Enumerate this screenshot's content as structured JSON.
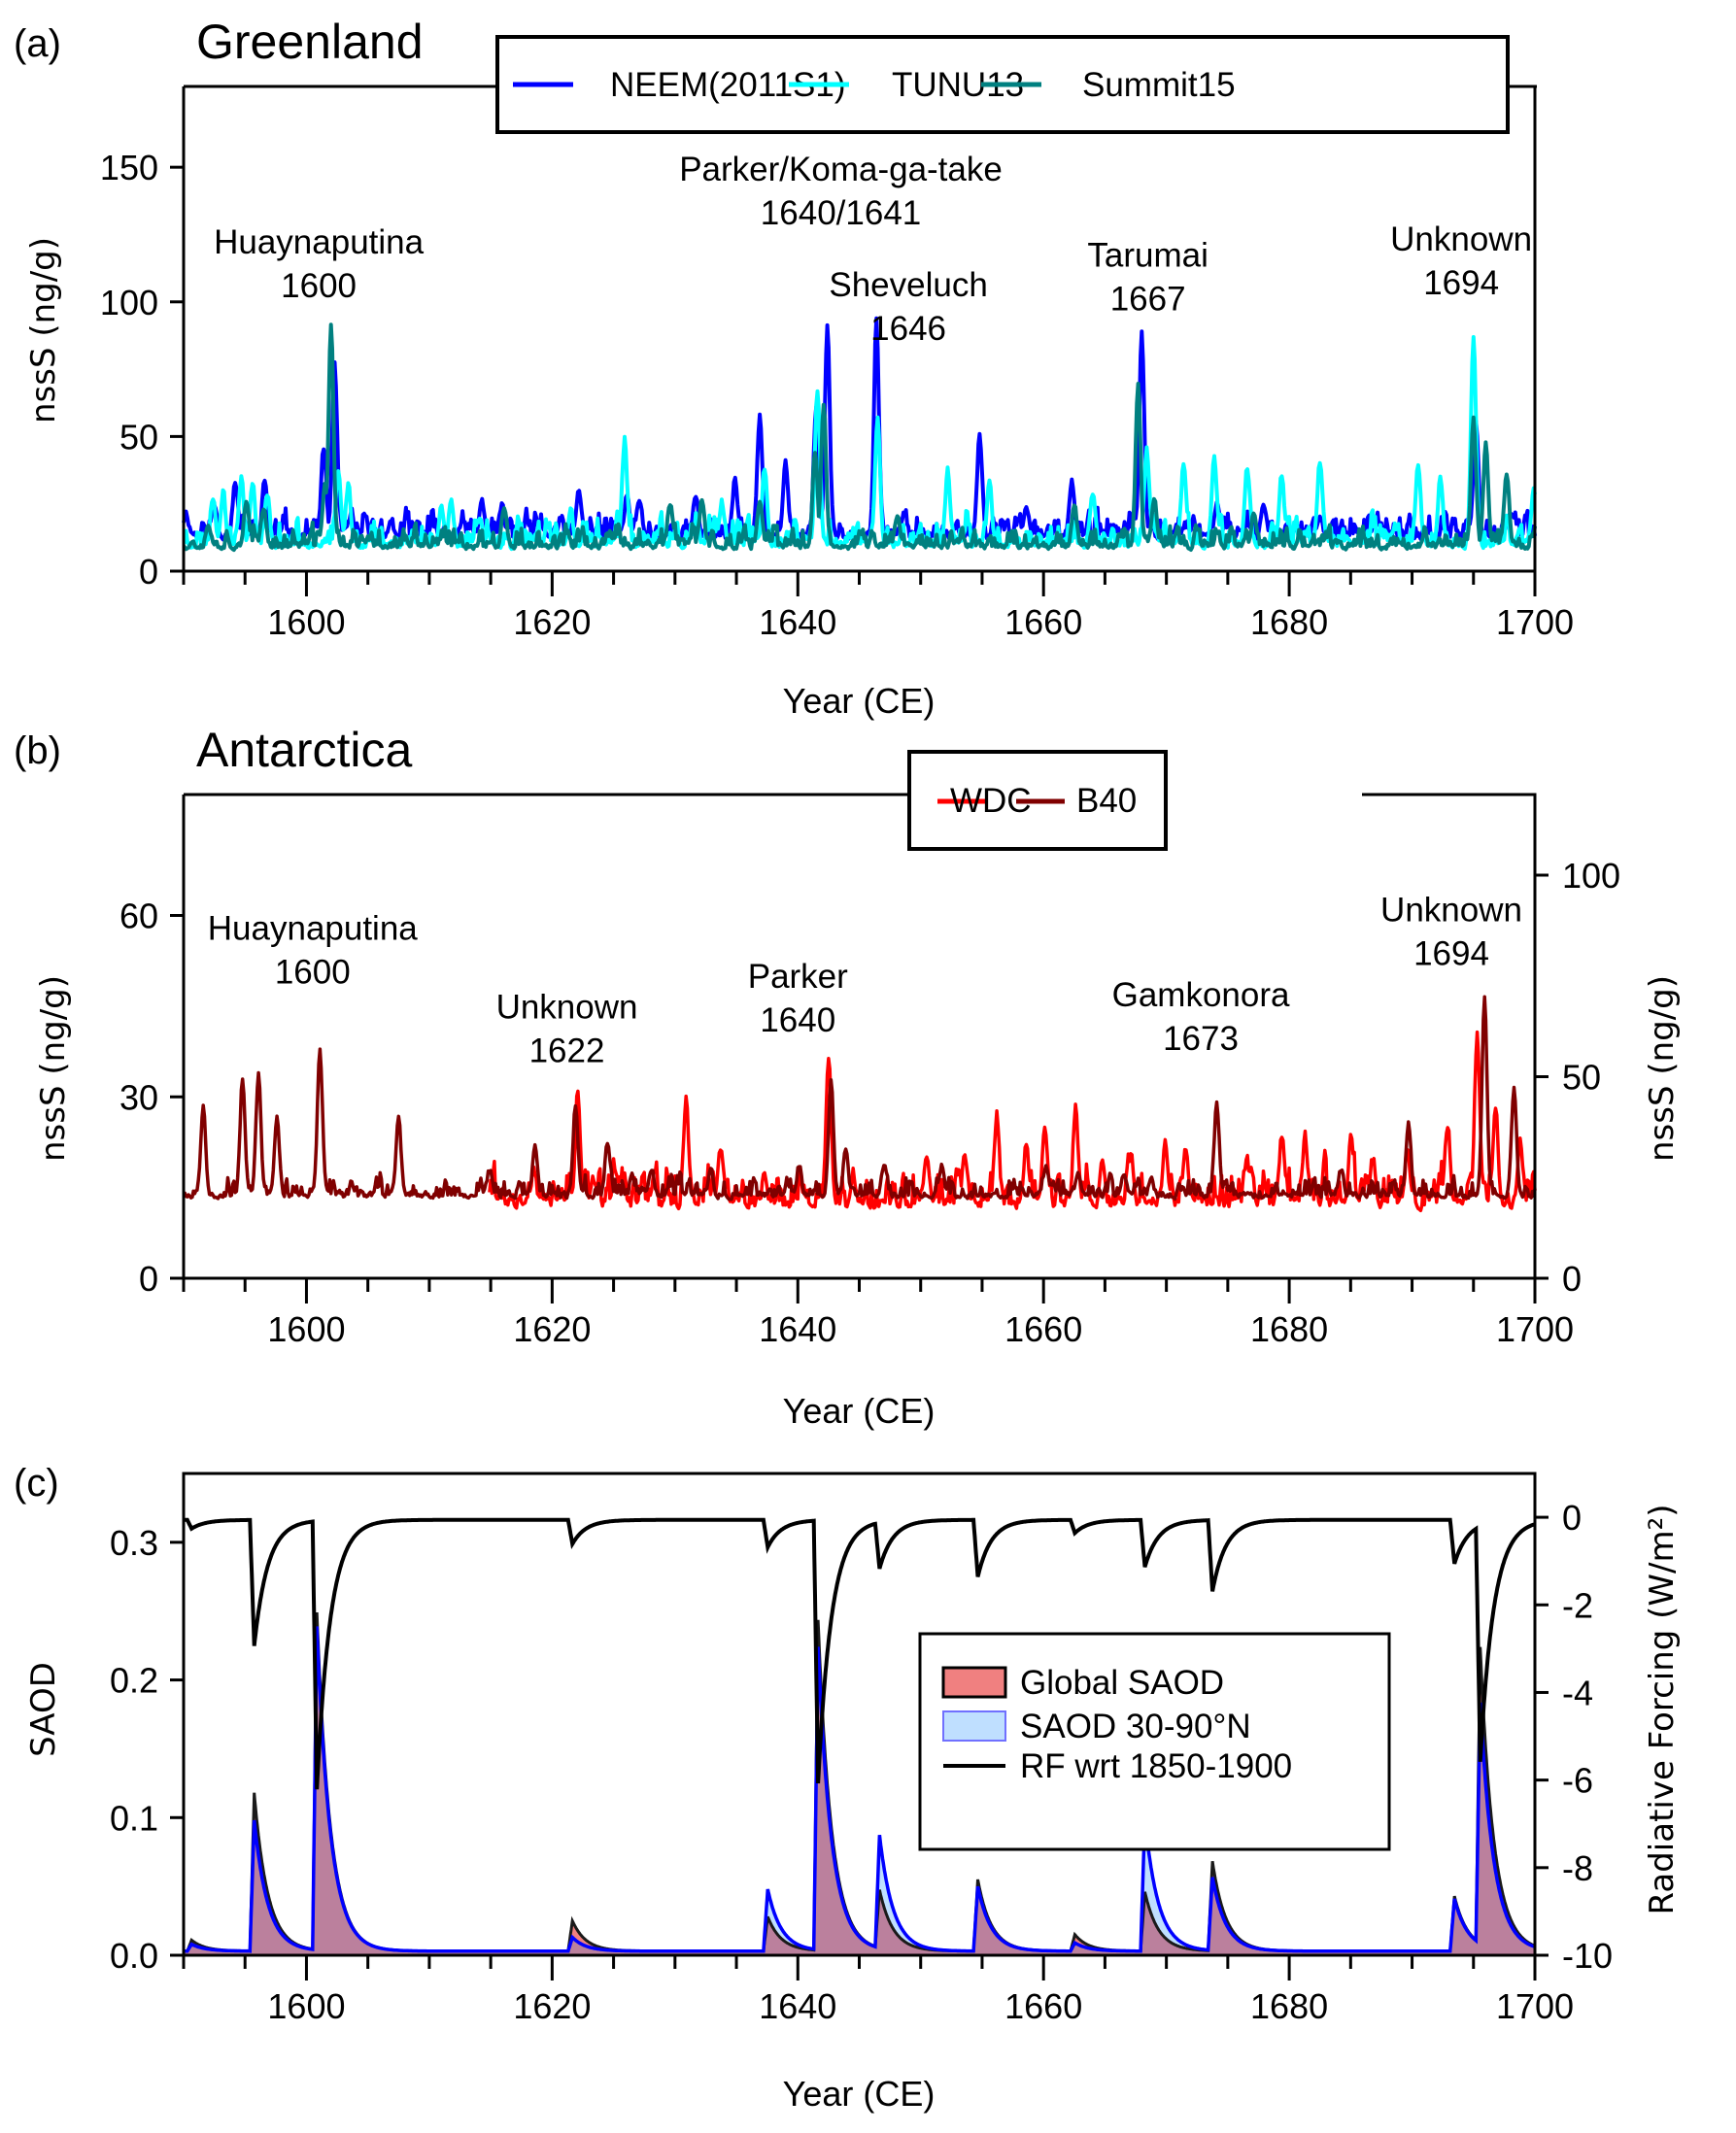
{
  "chart_data": [
    {
      "panel": "(a)",
      "type": "line",
      "title": "Greenland",
      "xlabel": "Year (CE)",
      "ylabel": "nssS (ng/g)",
      "xlim": [
        1590,
        1700
      ],
      "ylim": [
        0,
        180
      ],
      "xticks": [
        1600,
        1620,
        1640,
        1660,
        1680,
        1700
      ],
      "xtick_labels": [
        "1600",
        "1620",
        "1640",
        "1660",
        "1680",
        "1700"
      ],
      "minor_xtick_step": 5,
      "yticks": [
        0,
        50,
        100,
        150
      ],
      "ytick_labels": [
        "0",
        "50",
        "100",
        "150"
      ],
      "legend": {
        "placement": "top-center",
        "entries": [
          "NEEM(2011S1)",
          "TUNU13",
          "Summit15"
        ]
      },
      "series": [
        {
          "name": "NEEM(2011S1)",
          "color": "#0000ff",
          "baseline": 14,
          "noise": 7,
          "seed": 11,
          "peaks": [
            [
              1590.2,
              22
            ],
            [
              1592.5,
              25
            ],
            [
              1594.2,
              33
            ],
            [
              1596.6,
              33
            ],
            [
              1601.4,
              46
            ],
            [
              1602.3,
              78
            ],
            [
              1606.8,
              18
            ],
            [
              1614.3,
              26
            ],
            [
              1615.9,
              24
            ],
            [
              1622.2,
              30
            ],
            [
              1626.1,
              28
            ],
            [
              1627.1,
              27
            ],
            [
              1631.7,
              28
            ],
            [
              1634.9,
              35
            ],
            [
              1636.9,
              57
            ],
            [
              1639.0,
              39
            ],
            [
              1641.5,
              62
            ],
            [
              1642.4,
              90
            ],
            [
              1646.4,
              93
            ],
            [
              1654.8,
              52
            ],
            [
              1658.6,
              26
            ],
            [
              1662.3,
              35
            ],
            [
              1668.0,
              88
            ],
            [
              1674.1,
              25
            ],
            [
              1677.9,
              26
            ],
            [
              1682.5,
              22
            ],
            [
              1695.2,
              55
            ],
            [
              1697.9,
              21
            ]
          ]
        },
        {
          "name": "TUNU13",
          "color": "#00ffff",
          "baseline": 11,
          "noise": 8,
          "seed": 23,
          "peaks": [
            [
              1592.4,
              28
            ],
            [
              1593.2,
              30
            ],
            [
              1594.7,
              36
            ],
            [
              1595.6,
              33
            ],
            [
              1596.8,
              28
            ],
            [
              1602.6,
              36
            ],
            [
              1603.4,
              32
            ],
            [
              1611.0,
              24
            ],
            [
              1611.8,
              26
            ],
            [
              1621.5,
              22
            ],
            [
              1625.9,
              49
            ],
            [
              1633.8,
              26
            ],
            [
              1637.3,
              38
            ],
            [
              1641.6,
              68
            ],
            [
              1646.5,
              57
            ],
            [
              1652.2,
              37
            ],
            [
              1655.6,
              34
            ],
            [
              1664.0,
              30
            ],
            [
              1668.4,
              44
            ],
            [
              1671.4,
              40
            ],
            [
              1673.9,
              41
            ],
            [
              1676.6,
              38
            ],
            [
              1679.4,
              35
            ],
            [
              1682.5,
              40
            ],
            [
              1690.5,
              41
            ],
            [
              1692.3,
              35
            ],
            [
              1695.0,
              87
            ],
            [
              1699.9,
              30
            ]
          ]
        },
        {
          "name": "Summit15",
          "color": "#008080",
          "baseline": 10,
          "noise": 6,
          "seed": 37,
          "peaks": [
            [
              1592.0,
              18
            ],
            [
              1595.1,
              25
            ],
            [
              1596.5,
              24
            ],
            [
              1601.5,
              33
            ],
            [
              1602.0,
              91
            ],
            [
              1616.1,
              25
            ],
            [
              1629.6,
              25
            ],
            [
              1632.2,
              27
            ],
            [
              1636.9,
              25
            ],
            [
              1641.4,
              45
            ],
            [
              1642.1,
              62
            ],
            [
              1648.1,
              20
            ],
            [
              1662.5,
              25
            ],
            [
              1667.7,
              68
            ],
            [
              1669.0,
              27
            ],
            [
              1677.1,
              22
            ],
            [
              1695.0,
              57
            ],
            [
              1696.0,
              47
            ],
            [
              1697.7,
              36
            ]
          ]
        }
      ],
      "annotations": [
        {
          "lines": [
            "Huaynaputina",
            "1600"
          ],
          "x": 1601.0,
          "y": 118
        },
        {
          "lines": [
            "Parker/Koma-ga-take",
            "1640/1641"
          ],
          "x": 1643.5,
          "y": 145
        },
        {
          "lines": [
            "Sheveluch",
            "1646"
          ],
          "x": 1649.0,
          "y": 102
        },
        {
          "lines": [
            "Tarumai",
            "1667"
          ],
          "x": 1668.5,
          "y": 113
        },
        {
          "lines": [
            "Unknown",
            "1694"
          ],
          "x": 1694.0,
          "y": 119
        }
      ]
    },
    {
      "panel": "(b)",
      "type": "line",
      "title": "Antarctica",
      "xlabel": "Year (CE)",
      "ylabel": "nssS (ng/g)",
      "ylabel_right": "nssS (ng/g)",
      "xlim": [
        1590,
        1700
      ],
      "ylim": [
        0,
        80
      ],
      "ylim_right": [
        0,
        120
      ],
      "xticks": [
        1600,
        1620,
        1640,
        1660,
        1680,
        1700
      ],
      "xtick_labels": [
        "1600",
        "1620",
        "1640",
        "1660",
        "1680",
        "1700"
      ],
      "minor_xtick_step": 5,
      "yticks": [
        0,
        30,
        60
      ],
      "ytick_labels": [
        "0",
        "30",
        "60"
      ],
      "yticks_right": [
        0,
        50,
        100
      ],
      "ytick_labels_right": [
        "0",
        "50",
        "100"
      ],
      "legend": {
        "placement": "top-right",
        "entries": [
          "WDC",
          "B40"
        ]
      },
      "series": [
        {
          "name": "WDC",
          "color": "#ff0000",
          "axis": "left",
          "baseline": 13,
          "noise": 5,
          "seed": 51,
          "gap": [
            1614.6,
            1614.8
          ],
          "peaks": [
            [
              1594.5,
              30
            ],
            [
              1595.5,
              31
            ],
            [
              1596.3,
              35
            ],
            [
              1598.1,
              24
            ],
            [
              1600.8,
              41
            ],
            [
              1601.4,
              35
            ],
            [
              1604.7,
              24
            ],
            [
              1606.3,
              17
            ],
            [
              1608.6,
              21
            ],
            [
              1612.3,
              18
            ],
            [
              1618.5,
              18
            ],
            [
              1622.1,
              31
            ],
            [
              1625.2,
              18
            ],
            [
              1630.9,
              30
            ],
            [
              1633.7,
              22
            ],
            [
              1637.3,
              18
            ],
            [
              1642.5,
              37
            ],
            [
              1644.5,
              18
            ],
            [
              1650.5,
              21
            ],
            [
              1653.6,
              21
            ],
            [
              1656.2,
              27
            ],
            [
              1658.6,
              23
            ],
            [
              1660.1,
              25
            ],
            [
              1662.6,
              28
            ],
            [
              1664.8,
              19
            ],
            [
              1667.1,
              20
            ],
            [
              1669.9,
              23
            ],
            [
              1671.6,
              22
            ],
            [
              1676.9,
              18
            ],
            [
              1679.4,
              24
            ],
            [
              1681.3,
              23
            ],
            [
              1685.0,
              23
            ],
            [
              1686.8,
              20
            ],
            [
              1689.6,
              21
            ],
            [
              1692.9,
              26
            ],
            [
              1695.3,
              40
            ],
            [
              1696.8,
              28
            ],
            [
              1698.8,
              22
            ]
          ]
        },
        {
          "name": "B40",
          "color": "#800000",
          "axis": "left",
          "baseline": 14,
          "noise": 2.5,
          "seed": 67,
          "peaks": [
            [
              1591.6,
              28
            ],
            [
              1594.8,
              33
            ],
            [
              1596.1,
              34
            ],
            [
              1597.6,
              27
            ],
            [
              1601.1,
              38
            ],
            [
              1607.5,
              27
            ],
            [
              1614.9,
              18
            ],
            [
              1618.6,
              22
            ],
            [
              1621.9,
              29
            ],
            [
              1624.5,
              22
            ],
            [
              1628.1,
              18
            ],
            [
              1632.9,
              18
            ],
            [
              1640.1,
              19
            ],
            [
              1642.7,
              33
            ],
            [
              1643.9,
              22
            ],
            [
              1647.0,
              19
            ],
            [
              1651.7,
              19
            ],
            [
              1660.2,
              19
            ],
            [
              1662.8,
              17
            ],
            [
              1666.5,
              17
            ],
            [
              1674.1,
              29
            ],
            [
              1684.2,
              18
            ],
            [
              1689.7,
              26
            ],
            [
              1695.9,
              46
            ],
            [
              1698.3,
              31
            ]
          ]
        }
      ],
      "annotations": [
        {
          "lines": [
            "Huaynaputina",
            "1600"
          ],
          "x": 1600.5,
          "y": 56
        },
        {
          "lines": [
            "Unknown",
            "1622"
          ],
          "x": 1621.2,
          "y": 43
        },
        {
          "lines": [
            "Parker",
            "1640"
          ],
          "x": 1640.0,
          "y": 48
        },
        {
          "lines": [
            "Gamkonora",
            "1673"
          ],
          "x": 1672.8,
          "y": 45
        },
        {
          "lines": [
            "Unknown",
            "1694"
          ],
          "x": 1693.2,
          "y": 59
        }
      ]
    },
    {
      "panel": "(c)",
      "type": "area",
      "xlabel": "Year (CE)",
      "ylabel": "SAOD",
      "ylabel_right": "Radiative Forcing (W/m²)",
      "xlim": [
        1590,
        1700
      ],
      "ylim": [
        0,
        0.35
      ],
      "ylim_right": [
        -10,
        1
      ],
      "xticks": [
        1600,
        1620,
        1640,
        1660,
        1680,
        1700
      ],
      "xtick_labels": [
        "1600",
        "1620",
        "1640",
        "1660",
        "1680",
        "1700"
      ],
      "minor_xtick_step": 5,
      "yticks": [
        0.0,
        0.1,
        0.2,
        0.3
      ],
      "ytick_labels": [
        "0.0",
        "0.1",
        "0.2",
        "0.3"
      ],
      "yticks_right": [
        0,
        -2,
        -4,
        -6,
        -8,
        -10
      ],
      "ytick_labels_right": [
        "0",
        "-2",
        "-4",
        "-6",
        "-8",
        "-10"
      ],
      "legend": {
        "placement": "center-right",
        "entries": [
          "Global SAOD",
          "SAOD 30-90°N",
          "RF wrt 1850-1900"
        ]
      },
      "background_saod": 0.003,
      "decay_years": 1.1,
      "events": [
        {
          "year": 1590.3,
          "global": 0.008,
          "nh": 0.005
        },
        {
          "year": 1595.4,
          "global": 0.115,
          "nh": 0.095
        },
        {
          "year": 1600.5,
          "global": 0.245,
          "nh": 0.235
        },
        {
          "year": 1621.3,
          "global": 0.022,
          "nh": 0.01
        },
        {
          "year": 1637.2,
          "global": 0.025,
          "nh": 0.045
        },
        {
          "year": 1641.3,
          "global": 0.24,
          "nh": 0.22
        },
        {
          "year": 1646.3,
          "global": 0.042,
          "nh": 0.082
        },
        {
          "year": 1654.3,
          "global": 0.052,
          "nh": 0.047
        },
        {
          "year": 1662.2,
          "global": 0.012,
          "nh": 0.006
        },
        {
          "year": 1667.9,
          "global": 0.043,
          "nh": 0.096
        },
        {
          "year": 1673.4,
          "global": 0.065,
          "nh": 0.053
        },
        {
          "year": 1693.1,
          "global": 0.04,
          "nh": 0.038
        },
        {
          "year": 1695.2,
          "global": 0.215,
          "nh": 0.175
        }
      ],
      "rf_scale_per_saod": -25,
      "colors": {
        "global_fill": "#f08080",
        "nh_fill": "#bfdfff",
        "nh_line": "#0000ff",
        "overlap": "#bb809d",
        "rf": "#000000"
      }
    }
  ]
}
